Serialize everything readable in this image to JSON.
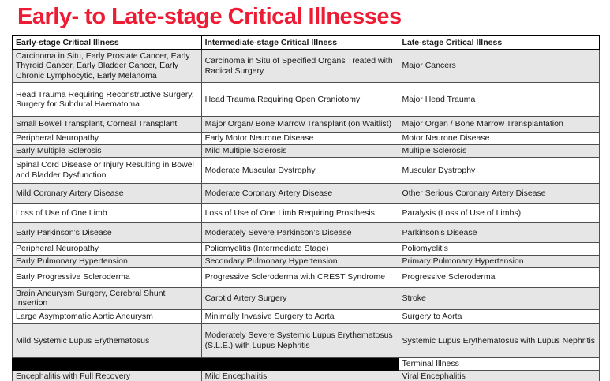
{
  "page": {
    "title": "Early- to Late-stage Critical Illnesses",
    "title_color": "#ed1b34",
    "background": "#ffffff"
  },
  "table": {
    "columns": [
      "Early-stage Critical Illness",
      "Intermediate-stage Critical Illness",
      "Late-stage Critical Illness"
    ],
    "stripe_color": "#e6e6e6",
    "redacted_color": "#000000",
    "rows": [
      {
        "cells": [
          "Carcinoma in Situ, Early Prostate Cancer, Early Thyroid Cancer, Early Bladder Cancer, Early Chronic Lymphocytic, Early Melanoma",
          "Carcinoma in Situ of Specified Organs Treated with Radical Surgery",
          "Major Cancers"
        ]
      },
      {
        "cells": [
          "Head Trauma Requiring Reconstructive Surgery, Surgery for Subdural Haematoma",
          "Head Trauma Requiring Open Craniotomy",
          "Major Head Trauma"
        ]
      },
      {
        "cells": [
          "Small Bowel Transplant, Corneal Transplant",
          "Major Organ/ Bone Marrow Transplant (on Waitlist)",
          "Major Organ / Bone Marrow Transplantation"
        ]
      },
      {
        "cells": [
          "Peripheral Neuropathy",
          "Early Motor Neurone Disease",
          "Motor Neurone Disease"
        ]
      },
      {
        "cells": [
          "Early Multiple Sclerosis",
          "Mild Multiple Sclerosis",
          "Multiple Sclerosis"
        ]
      },
      {
        "cells": [
          "Spinal Cord Disease or Injury Resulting in Bowel and Bladder Dysfunction",
          "Moderate Muscular Dystrophy",
          "Muscular Dystrophy"
        ]
      },
      {
        "cells": [
          "Mild Coronary Artery Disease",
          "Moderate Coronary Artery Disease",
          "Other Serious Coronary Artery Disease"
        ]
      },
      {
        "cells": [
          "Loss of Use of One Limb",
          "Loss of Use of One Limb Requiring Prosthesis",
          "Paralysis (Loss of Use of Limbs)"
        ]
      },
      {
        "cells": [
          "Early Parkinson’s Disease",
          "Moderately Severe Parkinson’s Disease",
          "Parkinson’s Disease"
        ]
      },
      {
        "cells": [
          "Peripheral Neuropathy",
          "Poliomyelitis (Intermediate Stage)",
          "Poliomyelitis"
        ]
      },
      {
        "cells": [
          "Early Pulmonary Hypertension",
          "Secondary Pulmonary Hypertension",
          "Primary Pulmonary Hypertension"
        ]
      },
      {
        "cells": [
          "Early Progressive Scleroderma",
          "Progressive Scleroderma with CREST Syndrome",
          "Progressive Scleroderma"
        ]
      },
      {
        "cells": [
          "Brain Aneurysm Surgery, Cerebral Shunt Insertion",
          "Carotid Artery Surgery",
          "Stroke"
        ]
      },
      {
        "cells": [
          "Large Asymptomatic Aortic Aneurysm",
          "Minimally Invasive Surgery to Aorta",
          "Surgery to Aorta"
        ]
      },
      {
        "cells": [
          "Mild Systemic Lupus Erythematosus",
          "Moderately Severe Systemic Lupus Erythematosus (S.L.E.) with Lupus Nephritis",
          "Systemic Lupus Erythematosus with Lupus Nephritis"
        ]
      },
      {
        "cells": [
          "",
          "",
          "Terminal Illness"
        ],
        "black_cells": [
          0,
          1
        ]
      },
      {
        "cells": [
          "Encephalitis with Full Recovery",
          "Mild Encephalitis",
          "Viral Encephalitis"
        ]
      }
    ]
  }
}
